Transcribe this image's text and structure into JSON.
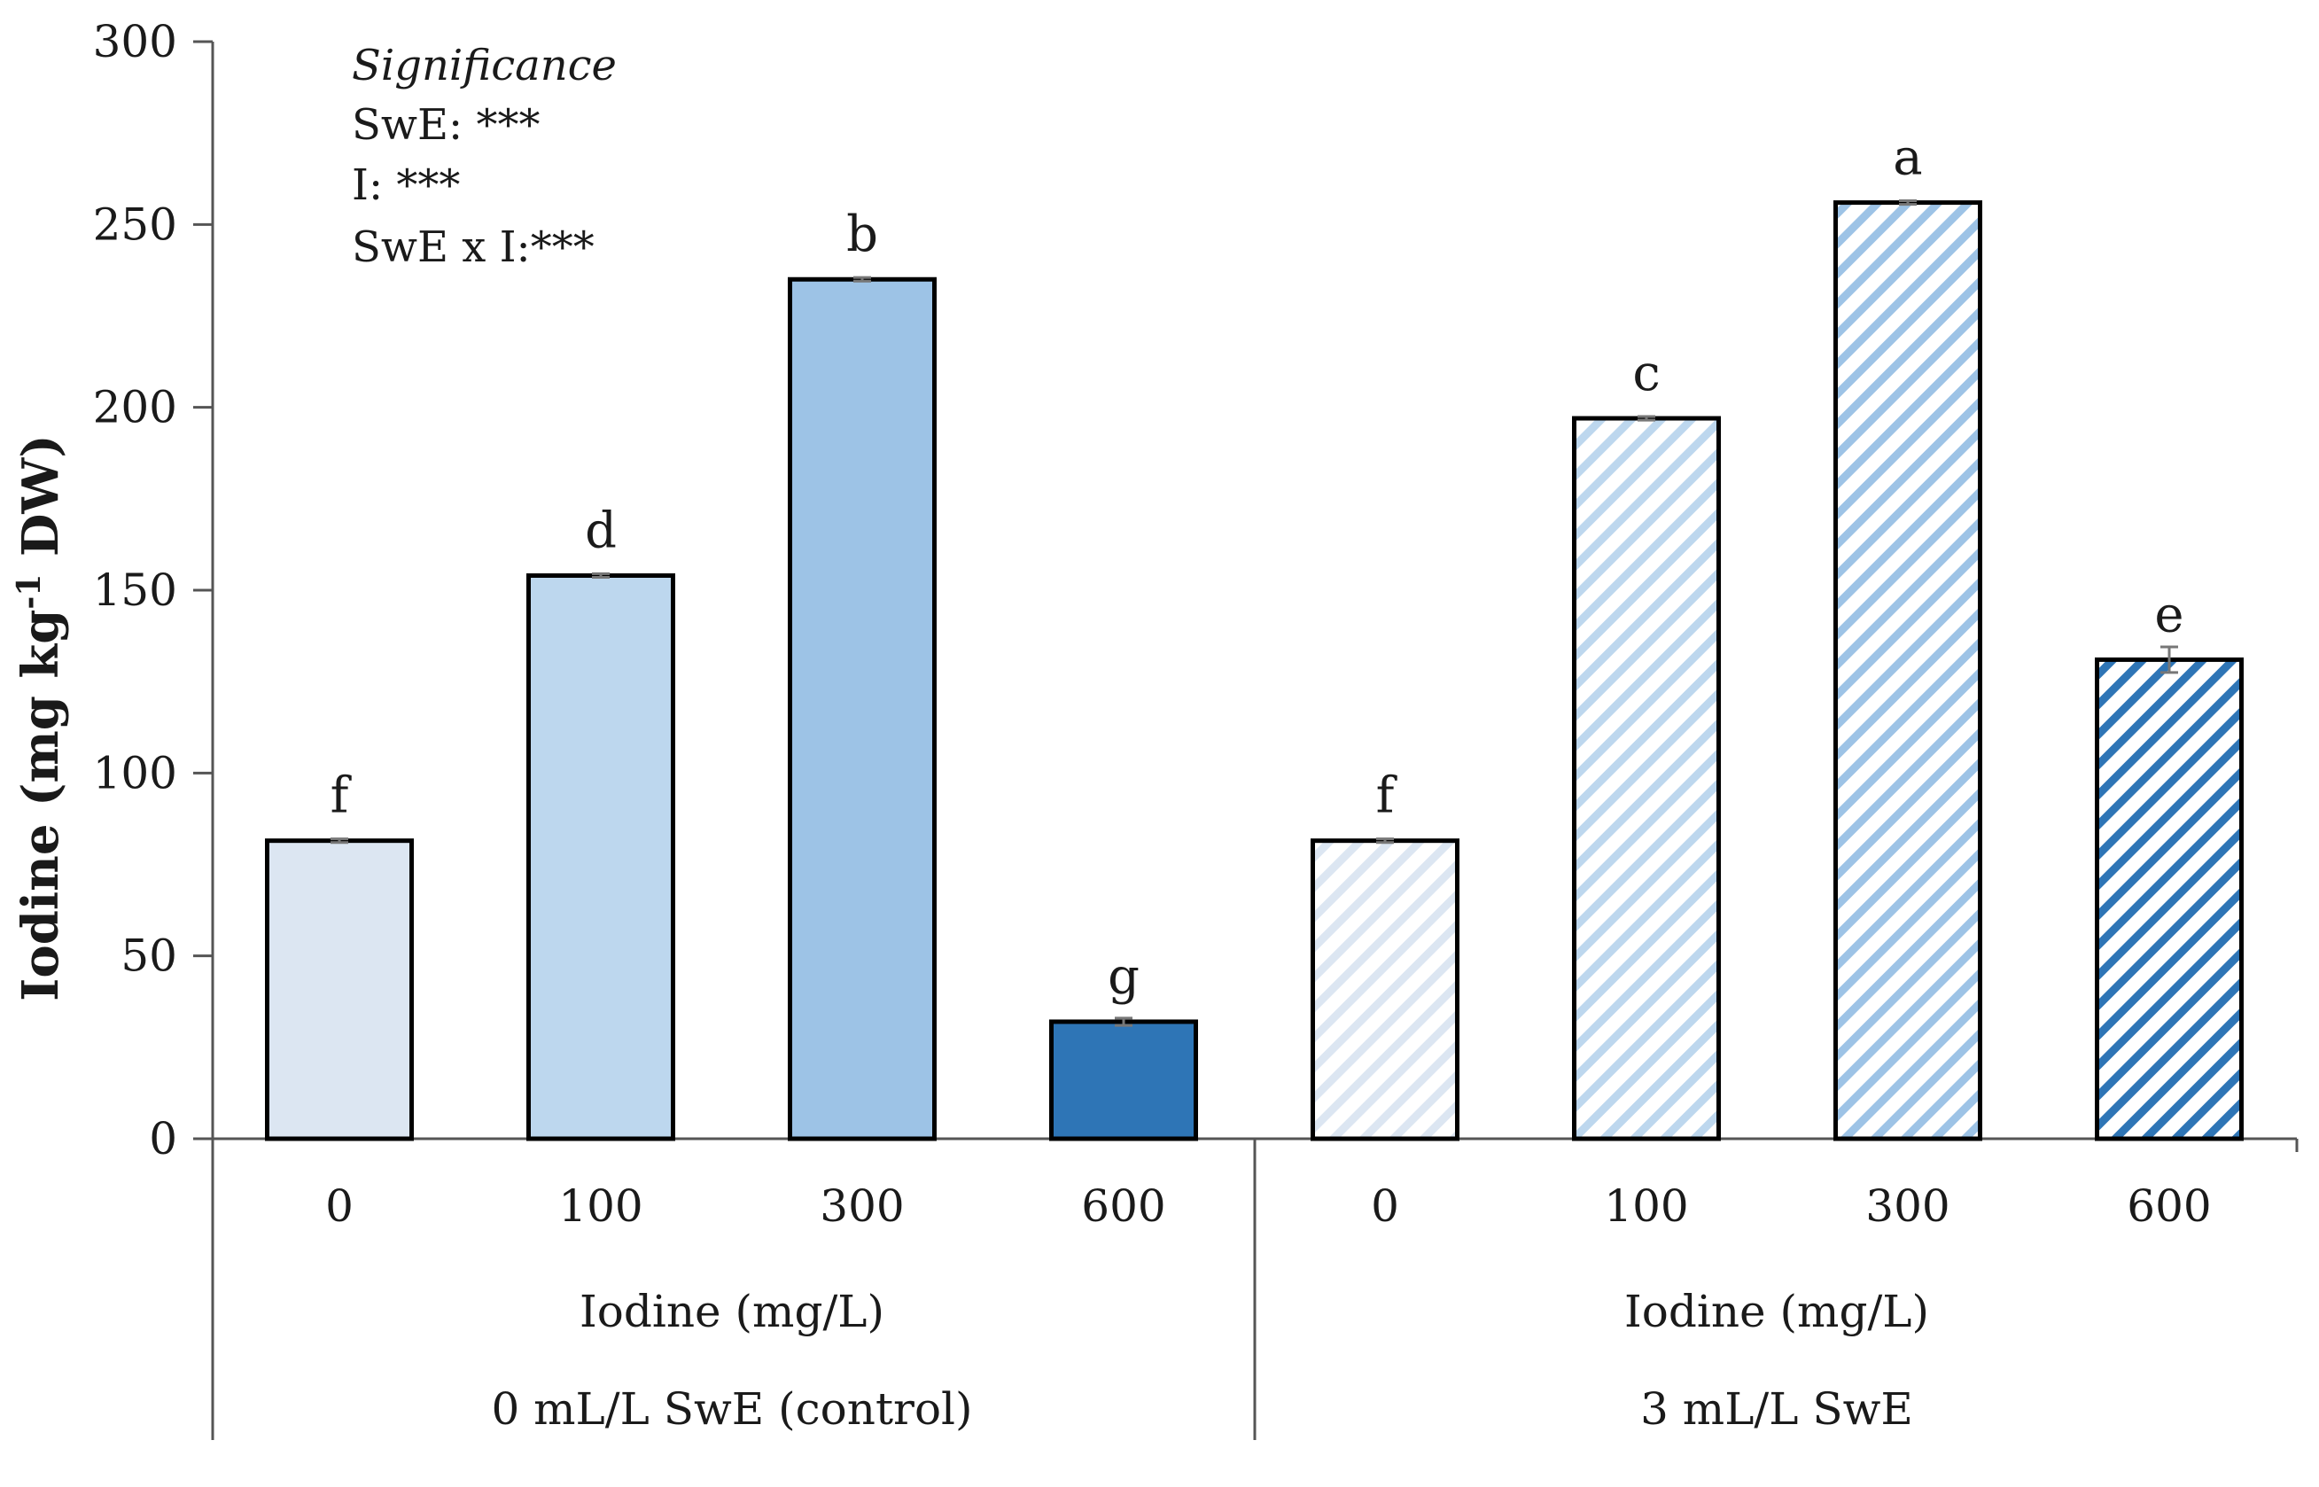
{
  "chart_data": {
    "type": "bar",
    "ylabel_main": "Iodine (mg kg",
    "ylabel_sup": "-1",
    "ylabel_end": " DW)",
    "ylim": [
      0,
      300
    ],
    "yticks": [
      0,
      50,
      100,
      150,
      200,
      250,
      300
    ],
    "yticks_labels": [
      "0",
      "50",
      "100",
      "150",
      "200",
      "250",
      "300"
    ],
    "significance": {
      "title": "Significance",
      "lines": [
        "SwE: ***",
        "I: ***",
        "SwE x I:***"
      ]
    },
    "groups": [
      {
        "name": "0 mL/L SwE (control)",
        "axis_label": "Iodine (mg/L)",
        "bars": [
          {
            "category": "0",
            "value": 81.5,
            "error": 0.5,
            "letter": "f",
            "color": "#dce6f2",
            "pattern": "solid"
          },
          {
            "category": "100",
            "value": 154,
            "error": 0.5,
            "letter": "d",
            "color": "#bdd7ee",
            "pattern": "solid"
          },
          {
            "category": "300",
            "value": 235,
            "error": 0.5,
            "letter": "b",
            "color": "#9dc3e6",
            "pattern": "solid"
          },
          {
            "category": "600",
            "value": 32,
            "error": 1.0,
            "letter": "g",
            "color": "#2e75b6",
            "pattern": "solid"
          }
        ]
      },
      {
        "name": "3 mL/L SwE",
        "axis_label": "Iodine (mg/L)",
        "bars": [
          {
            "category": "0",
            "value": 81.5,
            "error": 0.5,
            "letter": "f",
            "color": "#dce6f2",
            "pattern": "hatch"
          },
          {
            "category": "100",
            "value": 197,
            "error": 0.5,
            "letter": "c",
            "color": "#bdd7ee",
            "pattern": "hatch"
          },
          {
            "category": "300",
            "value": 256,
            "error": 0.5,
            "letter": "a",
            "color": "#9dc3e6",
            "pattern": "hatch"
          },
          {
            "category": "600",
            "value": 131,
            "error": 3.5,
            "letter": "e",
            "color": "#2e75b6",
            "pattern": "hatch"
          }
        ]
      }
    ]
  }
}
